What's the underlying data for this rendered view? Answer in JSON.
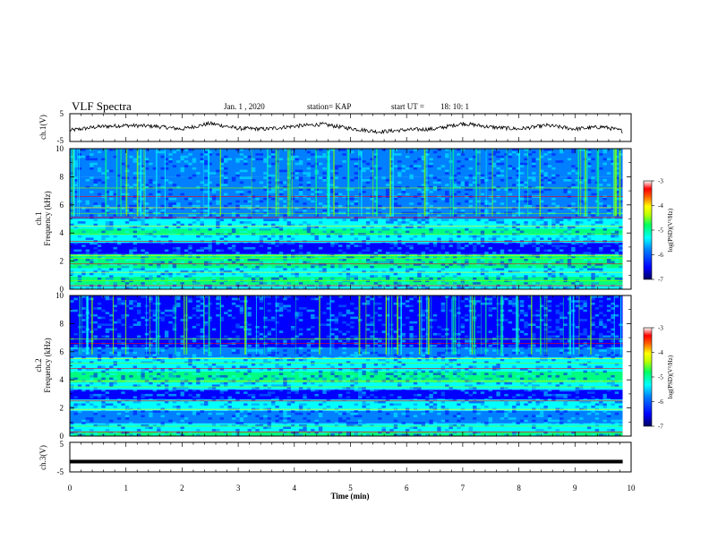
{
  "header": {
    "title": "VLF Spectra",
    "date": "Jan. 1 , 2020",
    "station": "station= KAP",
    "start_label": "start UT =",
    "start_time": "18: 10: 1"
  },
  "colors": {
    "line": "#000000",
    "colormap": [
      "#000080",
      "#0000ff",
      "#0080ff",
      "#00ffff",
      "#00ff80",
      "#80ff00",
      "#ffff00",
      "#ff8000",
      "#ff0000",
      "#ffffff"
    ]
  },
  "chart_data": [
    {
      "type": "line",
      "panel": "ch1-voltage",
      "ylabel": "ch.1(V)",
      "ylim": [
        -5,
        5
      ],
      "yticks": [
        "5",
        "-5"
      ],
      "xlim": [
        0,
        10
      ],
      "x": [
        0,
        0.5,
        1,
        1.5,
        2,
        2.5,
        3,
        3.5,
        4,
        4.5,
        5,
        5.5,
        6,
        6.5,
        7,
        7.5,
        8,
        8.5,
        9,
        9.5,
        9.85
      ],
      "values": [
        -1,
        0.3,
        0.8,
        0.5,
        -0.5,
        1.5,
        -0.3,
        -0.5,
        0.5,
        1.2,
        -0.3,
        -1.5,
        -0.8,
        -0.5,
        1.5,
        0.2,
        -0.5,
        0.8,
        -0.5,
        0.3,
        -1.2
      ]
    },
    {
      "type": "heatmap",
      "panel": "ch1-spectrogram",
      "ylabel": "ch.1",
      "ylabel2": "Frequency (kHz)",
      "ylim": [
        0,
        10
      ],
      "yticks": [
        "0",
        "2",
        "4",
        "6",
        "8",
        "10"
      ],
      "xlim": [
        0,
        10
      ],
      "colorbar": {
        "label": "log(PSD)(V²/Hz)",
        "range": [
          -7,
          -3
        ],
        "ticks": [
          "-3",
          "-4",
          "-5",
          "-6",
          "-7"
        ]
      }
    },
    {
      "type": "heatmap",
      "panel": "ch2-spectrogram",
      "ylabel": "ch.2",
      "ylabel2": "Frequency (kHz)",
      "ylim": [
        0,
        10
      ],
      "yticks": [
        "0",
        "2",
        "4",
        "6",
        "8",
        "10"
      ],
      "xlim": [
        0,
        10
      ],
      "colorbar": {
        "label": "log(PSD)(V²/Hz)",
        "range": [
          -7,
          -3
        ],
        "ticks": [
          "-3",
          "-4",
          "-5",
          "-6",
          "-7"
        ]
      }
    },
    {
      "type": "line",
      "panel": "ch3-voltage",
      "ylabel": "ch.3(V)",
      "ylim": [
        -5,
        5
      ],
      "yticks": [
        "5",
        "-5"
      ],
      "xlim": [
        0,
        10
      ],
      "x": [
        0,
        9.85
      ],
      "values": [
        -1.5,
        -1.5
      ]
    }
  ],
  "xaxis": {
    "label": "Time (min)",
    "ticks": [
      "0",
      "1",
      "2",
      "3",
      "4",
      "5",
      "6",
      "7",
      "8",
      "9",
      "10"
    ]
  }
}
